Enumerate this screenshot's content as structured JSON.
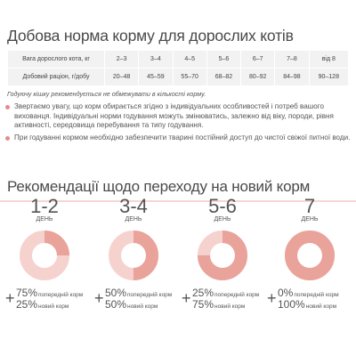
{
  "feeding": {
    "title": "Добова норма корму для дорослих котів",
    "table": {
      "weight_label": "Вага дорослого кота, кг",
      "ration_label": "Добовий раціон, г/добу",
      "weights": [
        "2–3",
        "3–4",
        "4–5",
        "5–6",
        "6–7",
        "7–8",
        "від 8"
      ],
      "rations": [
        "20–48",
        "45–59",
        "55–70",
        "68–82",
        "80–92",
        "84–98",
        "90–128"
      ]
    },
    "note": "Годуючу кішку рекомендується не обмежувати в кількості корму.",
    "bullets": [
      "Звертаємо увагу, що корм обирається згідно з індивідуальних особливостей і потреб вашого вихованця. Індивідуальні норми годування можуть змінюватись, залежно від віку, породи, рівня активності, середовища перебування та типу годування.",
      "При годуванні кормом необхідно забезпечити тварині постійний доступ до чистої свіжої питної води."
    ]
  },
  "transition": {
    "title": "Рекомендації щодо переходу на новий корм",
    "colors": {
      "old": "#f6d2cf",
      "new": "#e9a39b",
      "line": "#f5d6d2",
      "bullet": "#e78a8a"
    },
    "stages": [
      {
        "days": "1-2",
        "days_label": "ДЕНЬ",
        "old_pct": "75%",
        "old_label": "попередній корм",
        "new_pct": "25%",
        "new_label": "новий корм",
        "new_share": 0.25
      },
      {
        "days": "3-4",
        "days_label": "ДЕНЬ",
        "old_pct": "50%",
        "old_label": "попередній корм",
        "new_pct": "50%",
        "new_label": "новий корм",
        "new_share": 0.5
      },
      {
        "days": "5-6",
        "days_label": "ДЕНЬ",
        "old_pct": "25%",
        "old_label": "попередній корм",
        "new_pct": "75%",
        "new_label": "новий корм",
        "new_share": 0.75
      },
      {
        "days": "7",
        "days_label": "ДЕНЬ",
        "old_pct": "0%",
        "old_label": "попередній корм",
        "new_pct": "100%",
        "new_label": "новий корм",
        "new_share": 1.0
      }
    ]
  }
}
